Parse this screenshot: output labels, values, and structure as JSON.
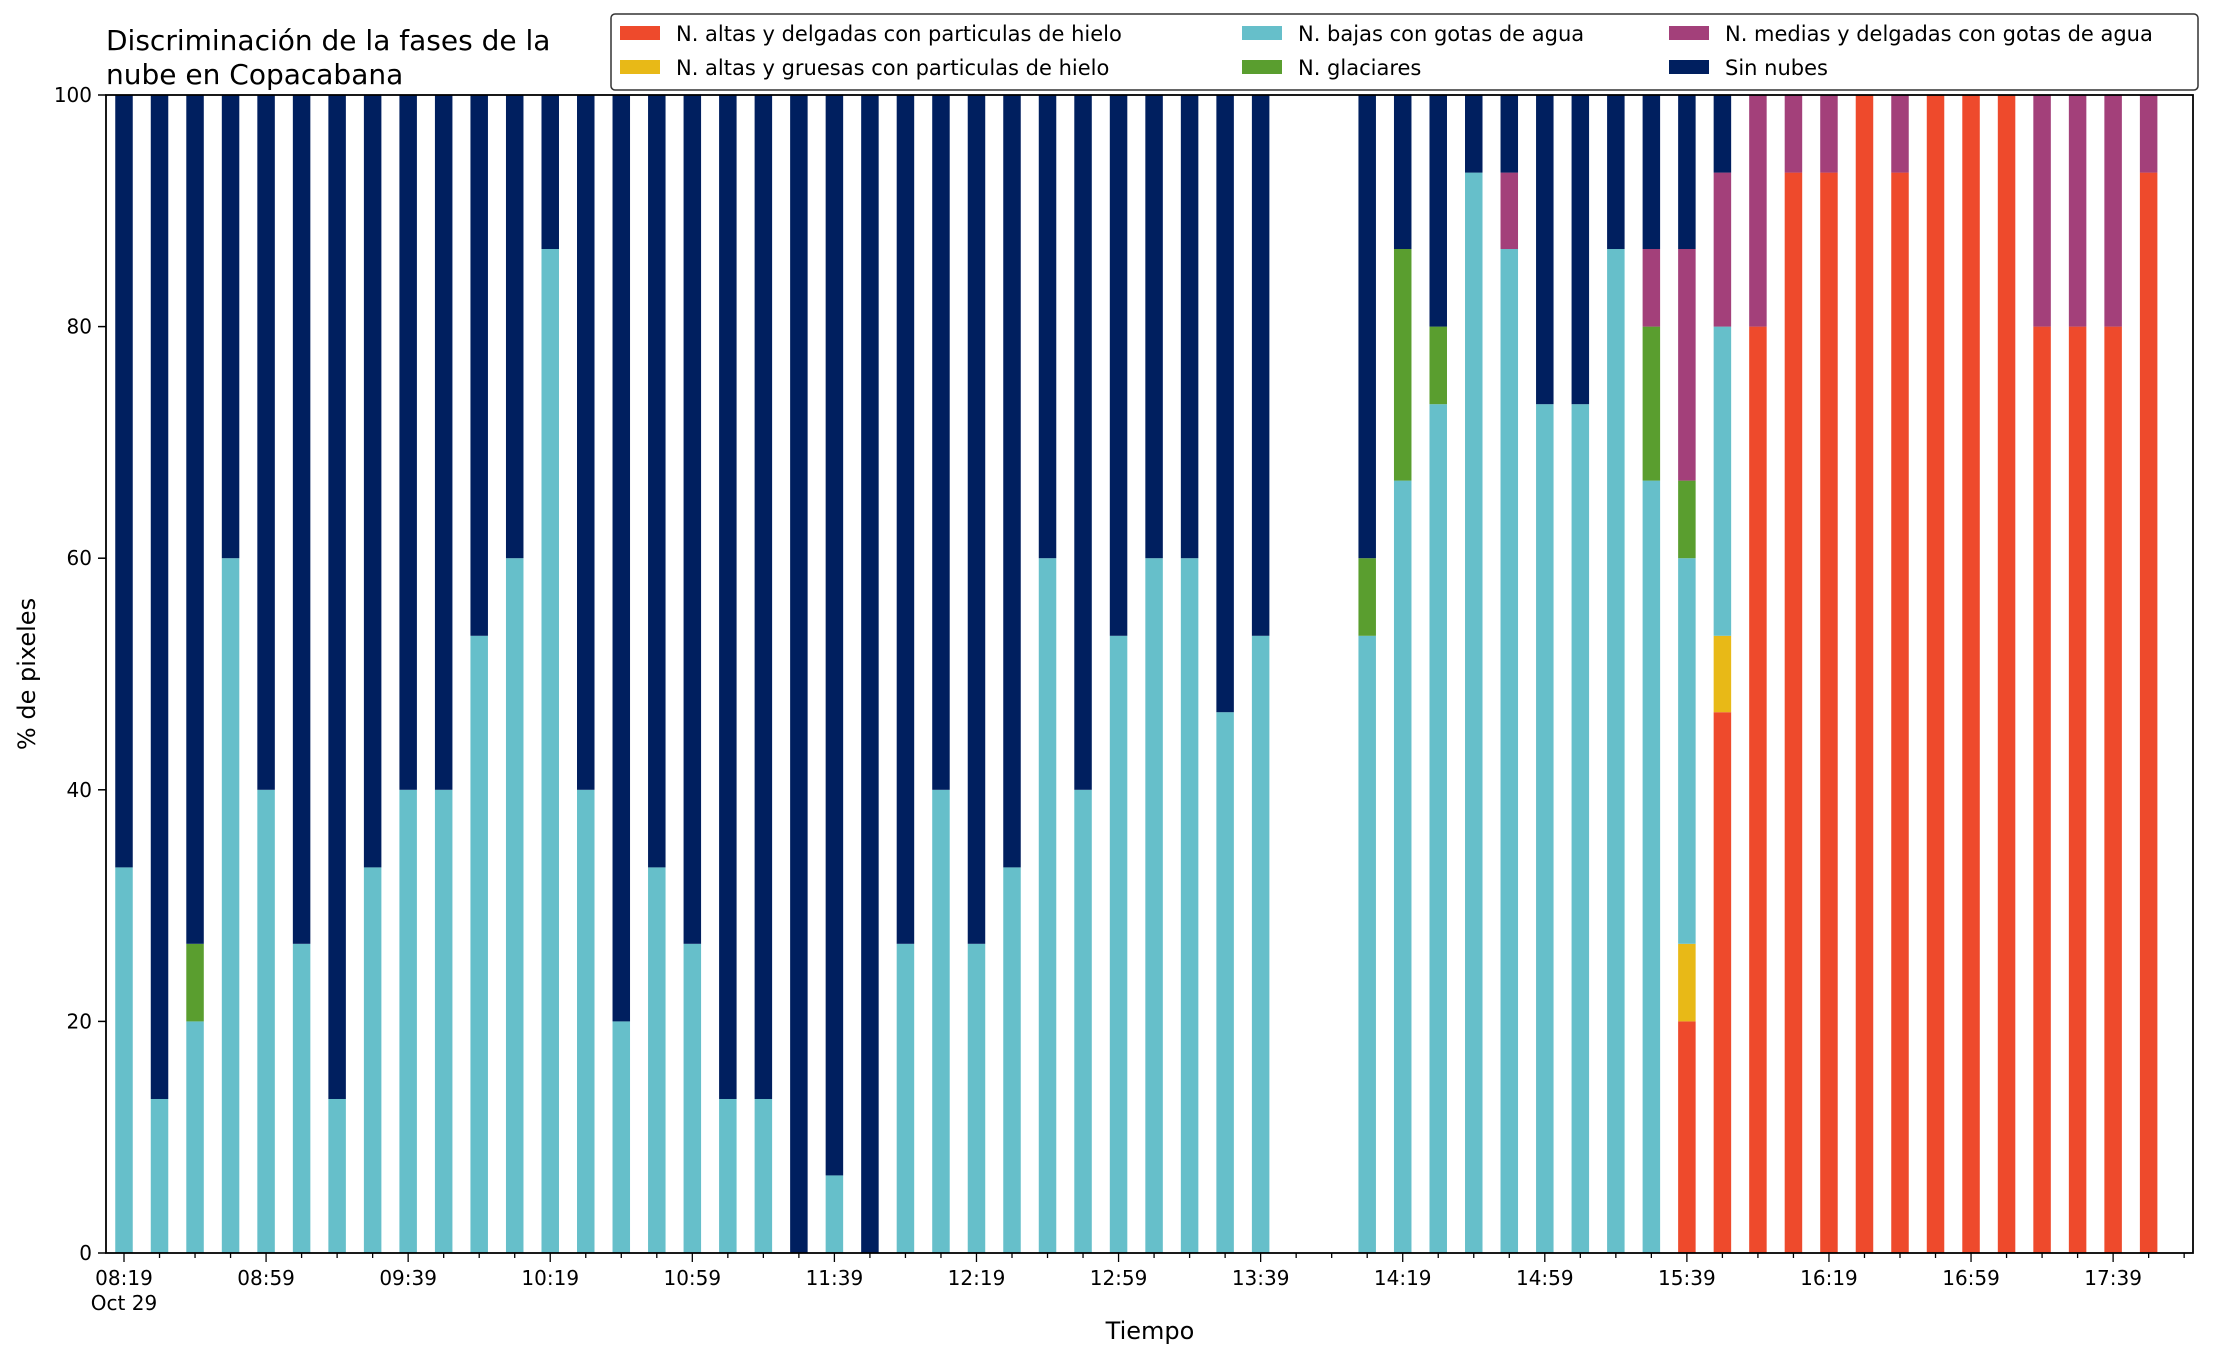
{
  "chart_data": {
    "type": "bar",
    "stacked": true,
    "title_lines": [
      "Discriminación de la fases de la",
      "nube en Copacabana"
    ],
    "xlabel": "Tiempo",
    "ylabel": "% de pixeles",
    "ylim": [
      0,
      100
    ],
    "yticks": [
      0,
      20,
      40,
      60,
      80,
      100
    ],
    "x_start": "2019-10-29 08:19",
    "x_interval_minutes": 10,
    "x_count": 59,
    "xticks": [
      {
        "index": 0,
        "label": "08:19",
        "sublabel": "Oct 29"
      },
      {
        "index": 4,
        "label": "08:59"
      },
      {
        "index": 8,
        "label": "09:39"
      },
      {
        "index": 12,
        "label": "10:19"
      },
      {
        "index": 16,
        "label": "10:59"
      },
      {
        "index": 20,
        "label": "11:39"
      },
      {
        "index": 24,
        "label": "12:19"
      },
      {
        "index": 28,
        "label": "12:59"
      },
      {
        "index": 32,
        "label": "13:39"
      },
      {
        "index": 36,
        "label": "14:19"
      },
      {
        "index": 40,
        "label": "14:59"
      },
      {
        "index": 44,
        "label": "15:39"
      },
      {
        "index": 48,
        "label": "16:19"
      },
      {
        "index": 52,
        "label": "16:59"
      },
      {
        "index": 56,
        "label": "17:39"
      }
    ],
    "legend_placement": "top-right",
    "series": [
      {
        "name": "N. altas y delgadas con particulas de hielo",
        "color": "#ee4a2c"
      },
      {
        "name": "N. altas y gruesas con particulas de hielo",
        "color": "#e8b917"
      },
      {
        "name": "N. bajas con gotas de agua",
        "color": "#66bfca"
      },
      {
        "name": "N. glaciares",
        "color": "#5a9e2f"
      },
      {
        "name": "N. medias y delgadas con gotas de agua",
        "color": "#a3407a"
      },
      {
        "name": "Sin nubes",
        "color": "#001f5f"
      }
    ],
    "bars": [
      {
        "x": "08:19",
        "values": [
          0,
          0,
          33.3,
          0,
          0,
          66.7
        ]
      },
      {
        "x": "08:29",
        "values": [
          0,
          0,
          13.3,
          0,
          0,
          86.7
        ]
      },
      {
        "x": "08:39",
        "values": [
          0,
          0,
          20,
          6.7,
          0,
          73.3
        ]
      },
      {
        "x": "08:49",
        "values": [
          0,
          0,
          60,
          0,
          0,
          40
        ]
      },
      {
        "x": "08:59",
        "values": [
          0,
          0,
          40,
          0,
          0,
          60
        ]
      },
      {
        "x": "09:09",
        "values": [
          0,
          0,
          26.7,
          0,
          0,
          73.3
        ]
      },
      {
        "x": "09:19",
        "values": [
          0,
          0,
          13.3,
          0,
          0,
          86.7
        ]
      },
      {
        "x": "09:29",
        "values": [
          0,
          0,
          33.3,
          0,
          0,
          66.7
        ]
      },
      {
        "x": "09:39",
        "values": [
          0,
          0,
          40,
          0,
          0,
          60
        ]
      },
      {
        "x": "09:49",
        "values": [
          0,
          0,
          40,
          0,
          0,
          60
        ]
      },
      {
        "x": "09:59",
        "values": [
          0,
          0,
          53.3,
          0,
          0,
          46.7
        ]
      },
      {
        "x": "10:09",
        "values": [
          0,
          0,
          60,
          0,
          0,
          40
        ]
      },
      {
        "x": "10:19",
        "values": [
          0,
          0,
          86.7,
          0,
          0,
          13.3
        ]
      },
      {
        "x": "10:29",
        "values": [
          0,
          0,
          40,
          0,
          0,
          60
        ]
      },
      {
        "x": "10:39",
        "values": [
          0,
          0,
          20,
          0,
          0,
          80
        ]
      },
      {
        "x": "10:49",
        "values": [
          0,
          0,
          33.3,
          0,
          0,
          66.7
        ]
      },
      {
        "x": "10:59",
        "values": [
          0,
          0,
          26.7,
          0,
          0,
          73.3
        ]
      },
      {
        "x": "11:09",
        "values": [
          0,
          0,
          13.3,
          0,
          0,
          86.7
        ]
      },
      {
        "x": "11:19",
        "values": [
          0,
          0,
          13.3,
          0,
          0,
          86.7
        ]
      },
      {
        "x": "11:29",
        "values": [
          0,
          0,
          0,
          0,
          0,
          100
        ]
      },
      {
        "x": "11:39",
        "values": [
          0,
          0,
          6.7,
          0,
          0,
          93.3
        ]
      },
      {
        "x": "11:49",
        "values": [
          0,
          0,
          0,
          0,
          0,
          100
        ]
      },
      {
        "x": "11:59",
        "values": [
          0,
          0,
          26.7,
          0,
          0,
          73.3
        ]
      },
      {
        "x": "12:09",
        "values": [
          0,
          0,
          40,
          0,
          0,
          60
        ]
      },
      {
        "x": "12:19",
        "values": [
          0,
          0,
          26.7,
          0,
          0,
          73.3
        ]
      },
      {
        "x": "12:29",
        "values": [
          0,
          0,
          33.3,
          0,
          0,
          66.7
        ]
      },
      {
        "x": "12:39",
        "values": [
          0,
          0,
          60,
          0,
          0,
          40
        ]
      },
      {
        "x": "12:49",
        "values": [
          0,
          0,
          40,
          0,
          0,
          60
        ]
      },
      {
        "x": "12:59",
        "values": [
          0,
          0,
          53.3,
          0,
          0,
          46.7
        ]
      },
      {
        "x": "13:09",
        "values": [
          0,
          0,
          60,
          0,
          0,
          40
        ]
      },
      {
        "x": "13:19",
        "values": [
          0,
          0,
          60,
          0,
          0,
          40
        ]
      },
      {
        "x": "13:29",
        "values": [
          0,
          0,
          46.7,
          0,
          0,
          53.3
        ]
      },
      {
        "x": "13:39",
        "values": [
          0,
          0,
          53.3,
          0,
          0,
          46.7
        ]
      },
      {
        "x": "13:49",
        "values": [
          0,
          0,
          0,
          0,
          0,
          0
        ]
      },
      {
        "x": "13:59",
        "values": [
          0,
          0,
          0,
          0,
          0,
          0
        ]
      },
      {
        "x": "14:09",
        "values": [
          0,
          0,
          53.3,
          6.7,
          0,
          40
        ]
      },
      {
        "x": "14:19",
        "values": [
          0,
          0,
          66.7,
          20,
          0,
          13.3
        ]
      },
      {
        "x": "14:29",
        "values": [
          0,
          0,
          73.3,
          6.7,
          0,
          20
        ]
      },
      {
        "x": "14:39",
        "values": [
          0,
          0,
          93.3,
          0,
          0,
          6.7
        ]
      },
      {
        "x": "14:49",
        "values": [
          0,
          0,
          86.7,
          0,
          6.6,
          6.7
        ]
      },
      {
        "x": "14:59",
        "values": [
          0,
          0,
          73.3,
          0,
          0,
          26.7
        ]
      },
      {
        "x": "15:09",
        "values": [
          0,
          0,
          73.3,
          0,
          0,
          26.7
        ]
      },
      {
        "x": "15:19",
        "values": [
          0,
          0,
          86.7,
          0,
          0,
          13.3
        ]
      },
      {
        "x": "15:29",
        "values": [
          0,
          0,
          66.7,
          13.3,
          6.7,
          13.3
        ]
      },
      {
        "x": "15:39",
        "values": [
          20,
          6.7,
          33.3,
          6.7,
          20,
          13.3
        ]
      },
      {
        "x": "15:49",
        "values": [
          46.7,
          6.6,
          26.7,
          0,
          13.3,
          6.7
        ]
      },
      {
        "x": "15:59",
        "values": [
          80,
          0,
          0,
          0,
          20,
          0
        ]
      },
      {
        "x": "16:09",
        "values": [
          93.3,
          0,
          0,
          0,
          6.7,
          0
        ]
      },
      {
        "x": "16:19",
        "values": [
          93.3,
          0,
          0,
          0,
          6.7,
          0
        ]
      },
      {
        "x": "16:29",
        "values": [
          100,
          0,
          0,
          0,
          0,
          0
        ]
      },
      {
        "x": "16:39",
        "values": [
          93.3,
          0,
          0,
          0,
          6.7,
          0
        ]
      },
      {
        "x": "16:49",
        "values": [
          100,
          0,
          0,
          0,
          0,
          0
        ]
      },
      {
        "x": "16:59",
        "values": [
          100,
          0,
          0,
          0,
          0,
          0
        ]
      },
      {
        "x": "17:09",
        "values": [
          100,
          0,
          0,
          0,
          0,
          0
        ]
      },
      {
        "x": "17:19",
        "values": [
          80,
          0,
          0,
          0,
          20,
          0
        ]
      },
      {
        "x": "17:29",
        "values": [
          80,
          0,
          0,
          0,
          20,
          0
        ]
      },
      {
        "x": "17:39",
        "values": [
          80,
          0,
          0,
          0,
          20,
          0
        ]
      },
      {
        "x": "17:49",
        "values": [
          93.3,
          0,
          0,
          0,
          6.7,
          0
        ]
      },
      {
        "x": "17:59",
        "values": [
          0,
          0,
          0,
          0,
          0,
          0
        ]
      }
    ]
  }
}
